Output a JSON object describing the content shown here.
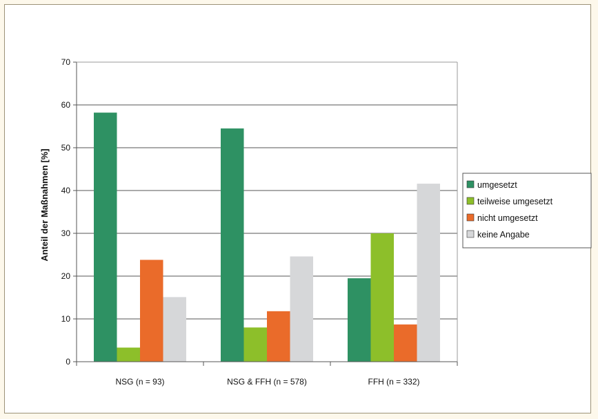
{
  "chart_data": {
    "type": "bar",
    "categories": [
      "NSG (n = 93)",
      "NSG & FFH (n = 578)",
      "FFH (n = 332)"
    ],
    "series": [
      {
        "name": "umgesetzt",
        "color": "#2e9163",
        "values": [
          58.2,
          54.5,
          19.5
        ]
      },
      {
        "name": "teilweise umgesetzt",
        "color": "#8dbf2a",
        "values": [
          3.3,
          8.0,
          30.0
        ]
      },
      {
        "name": "nicht umgesetzt",
        "color": "#ea6b2a",
        "values": [
          23.8,
          11.8,
          8.7
        ]
      },
      {
        "name": "keine Angabe",
        "color": "#d6d7d9",
        "values": [
          15.1,
          24.6,
          41.6
        ]
      }
    ],
    "ylabel": "Anteil der Maßnahmen [%]",
    "xlabel": "",
    "ylim": [
      0,
      70
    ],
    "yticks": [
      0,
      10,
      20,
      30,
      40,
      50,
      60,
      70
    ],
    "grid": true,
    "legend_position": "right"
  }
}
